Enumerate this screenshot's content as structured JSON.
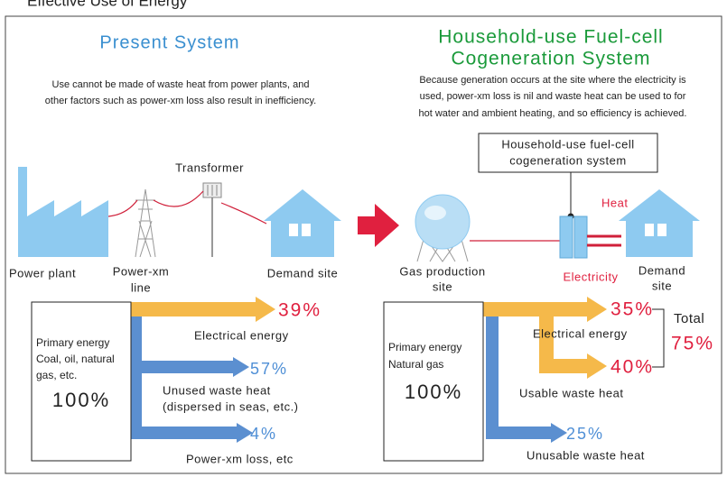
{
  "title": "Effective Use of Energy",
  "present": {
    "heading": "Present System",
    "description": [
      "Use cannot be made of waste heat from power plants, and",
      "other factors such as power-xm loss also result in inefficiency."
    ],
    "labels": {
      "transformer": "Transformer",
      "power_plant": "Power plant",
      "power_line": [
        "Power-xm",
        "line"
      ],
      "demand_site": "Demand site"
    },
    "source": [
      "Primary energy",
      "Coal, oil, natural",
      "gas, etc.",
      "100%"
    ],
    "flows": [
      {
        "percent": "39%",
        "label": [
          "Electrical energy"
        ]
      },
      {
        "percent": "57%",
        "label": [
          "Unused waste heat",
          "(dispersed in seas, etc.)"
        ]
      },
      {
        "percent": "4%",
        "label": [
          "Power-xm loss, etc"
        ]
      }
    ]
  },
  "cogeneration": {
    "heading": [
      "Household-use Fuel-cell",
      "Cogeneration System"
    ],
    "description": [
      "Because generation occurs at the site where the electricity is",
      "used, power-xm loss is nil and waste heat can be used to for",
      "hot water and ambient heating, and so efficiency is achieved."
    ],
    "system_box": [
      "Household-use fuel-cell",
      "cogeneration system"
    ],
    "labels": {
      "heat": "Heat",
      "gas_site": [
        "Gas production",
        "site"
      ],
      "electricity": "Electricity",
      "demand_site": [
        "Demand",
        "site"
      ]
    },
    "source": [
      "Primary energy",
      "Natural gas",
      "100%"
    ],
    "flows": [
      {
        "percent": "35%",
        "label": [
          "Electrical energy"
        ]
      },
      {
        "percent": "40%",
        "label": [
          "Usable waste heat"
        ]
      },
      {
        "percent": "25%",
        "label": [
          "Unusable waste heat"
        ]
      }
    ],
    "total": {
      "label": "Total",
      "percent": "75%"
    }
  }
}
